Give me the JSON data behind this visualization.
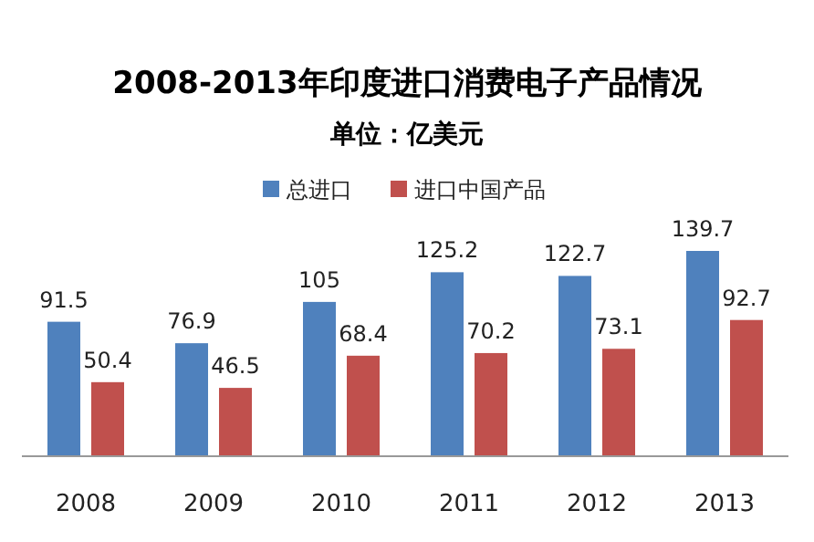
{
  "chart_data": {
    "type": "bar",
    "title": "2008-2013年印度进口消费电子产品情况",
    "subtitle": "单位：亿美元",
    "categories": [
      "2008",
      "2009",
      "2010",
      "2011",
      "2012",
      "2013"
    ],
    "series": [
      {
        "name": "总进口",
        "color": "#4f81bd",
        "values": [
          91.5,
          76.9,
          105,
          125.2,
          122.7,
          139.7
        ]
      },
      {
        "name": "进口中国产品",
        "color": "#c0504d",
        "values": [
          50.4,
          46.5,
          68.4,
          70.2,
          73.1,
          92.7
        ]
      }
    ],
    "data_labels": true,
    "legend": "top",
    "grid": false
  }
}
